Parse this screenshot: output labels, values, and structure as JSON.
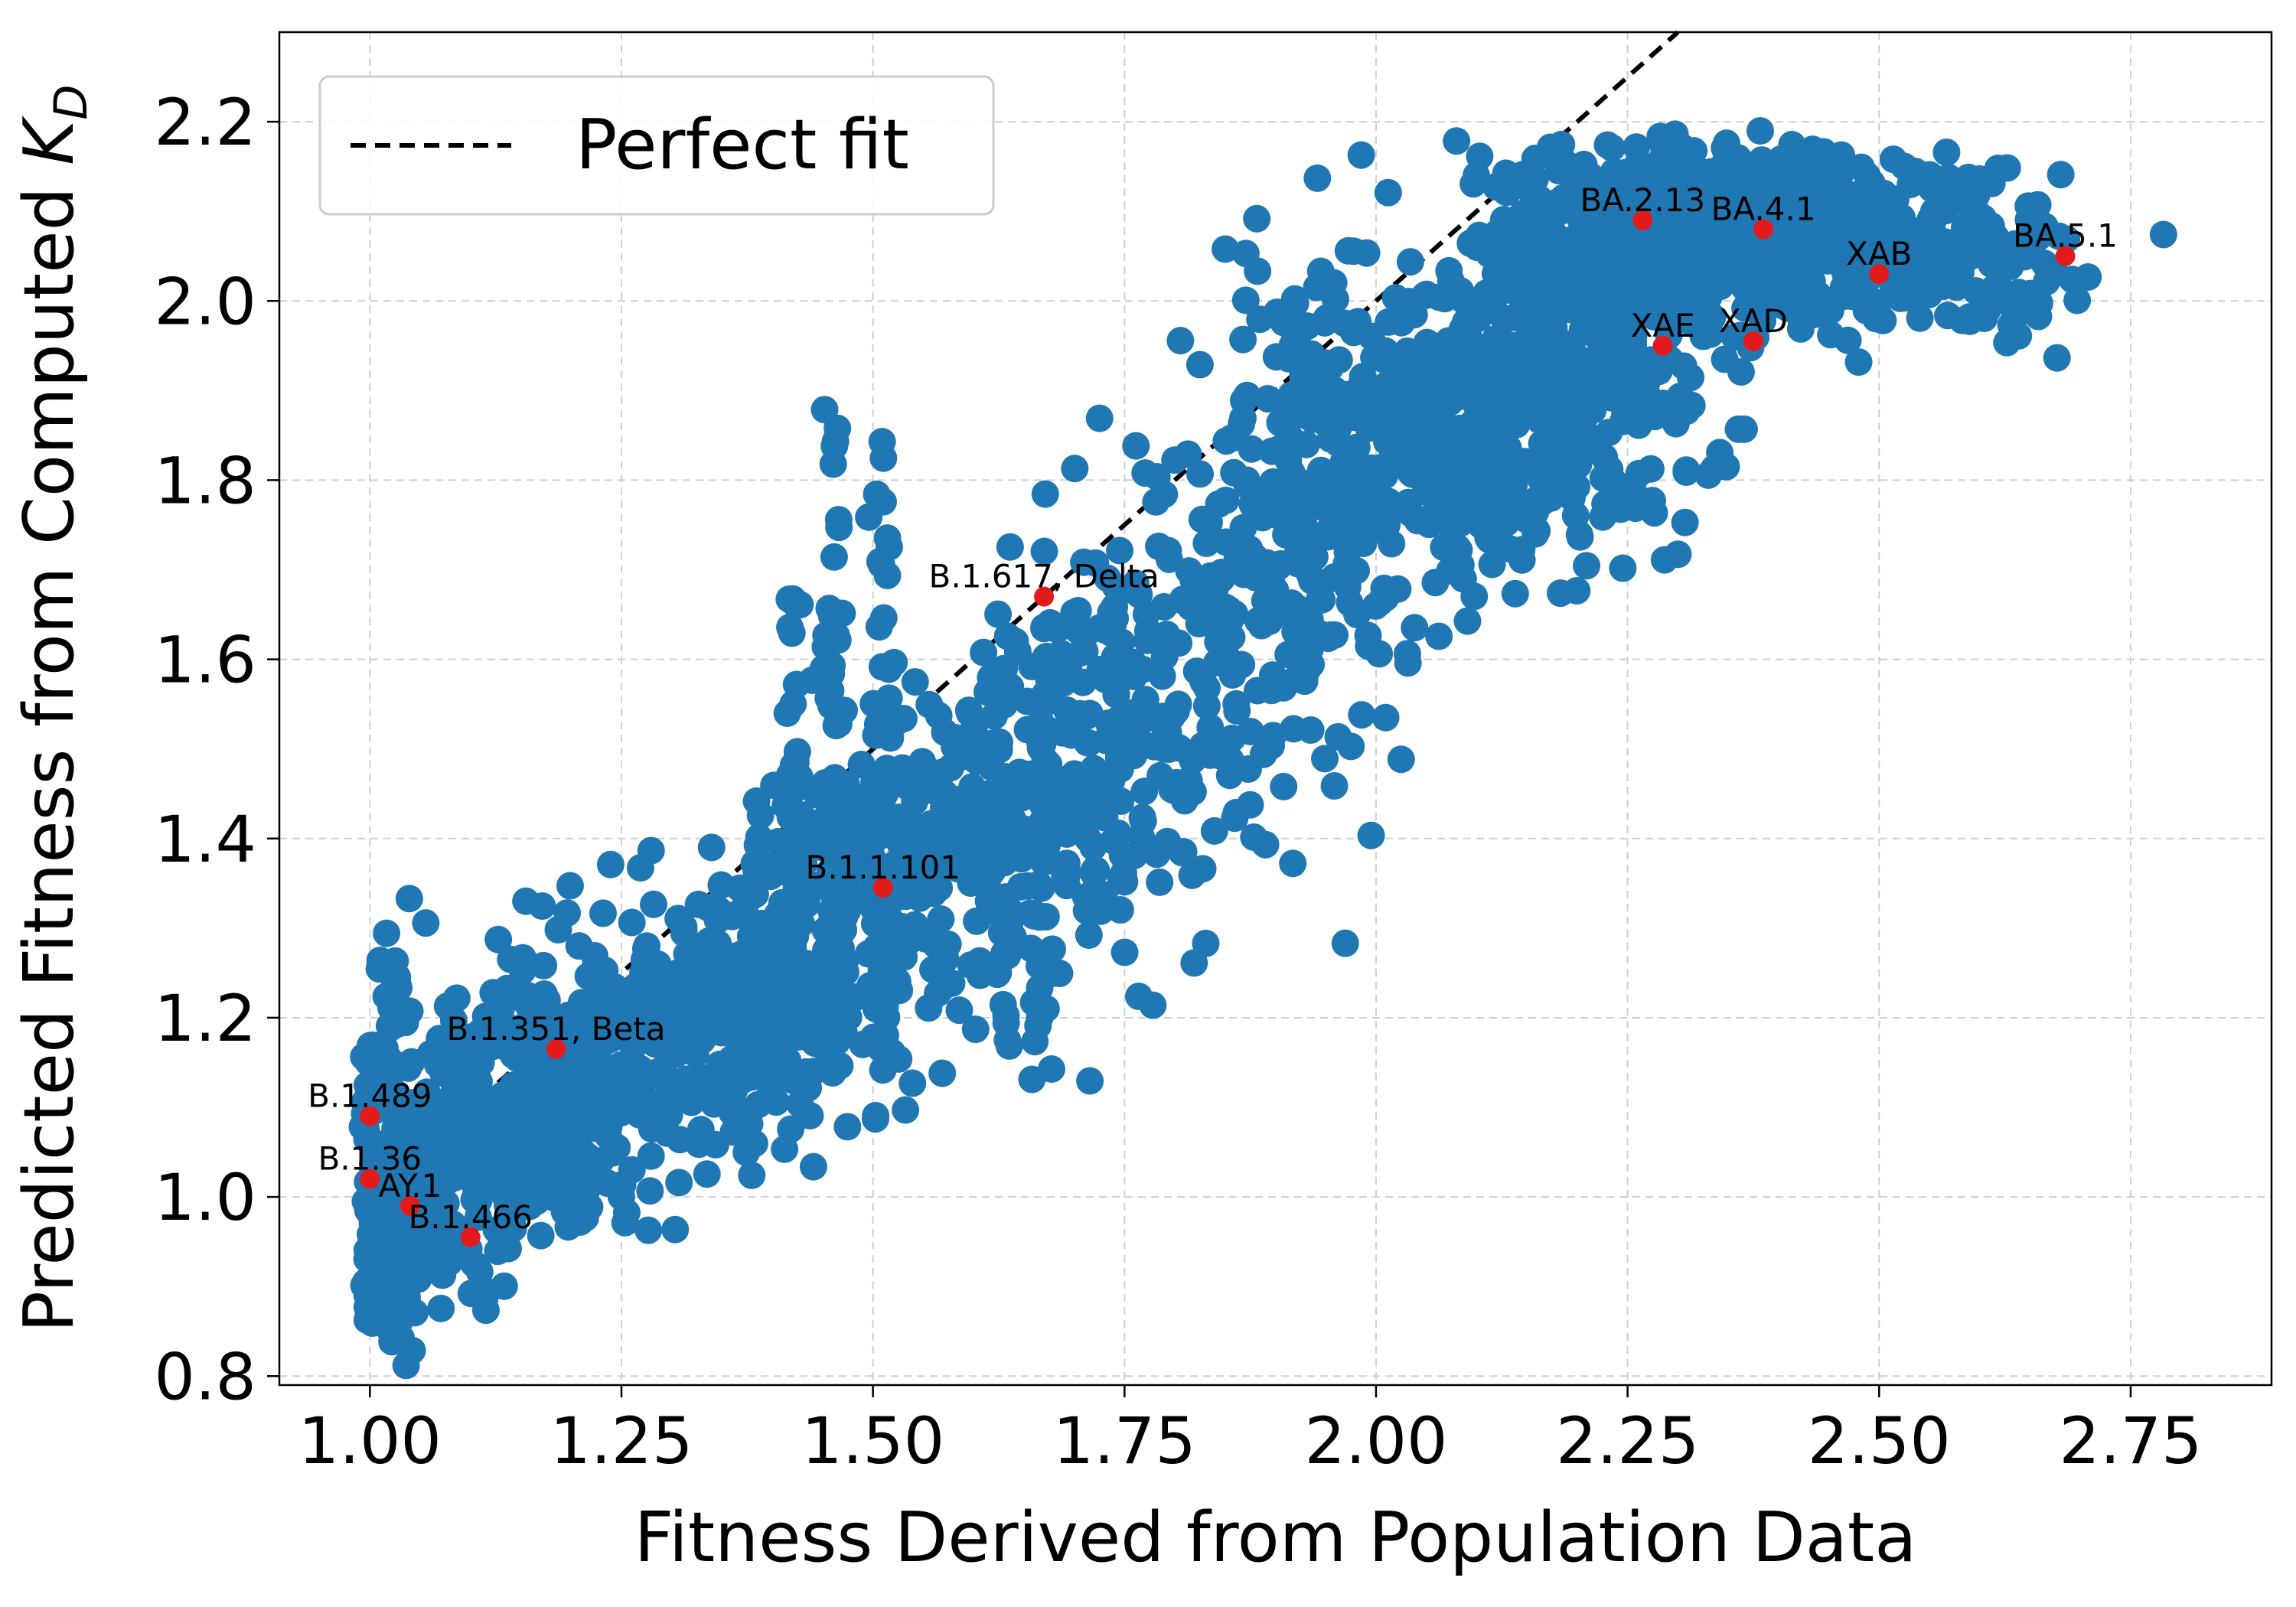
{
  "chart_data": {
    "type": "scatter",
    "xlabel": "Fitness Derived from Population Data",
    "ylabel_main": "Predicted Fitness from Computed ",
    "ylabel_sym": "K",
    "ylabel_sub": "D",
    "xlim": [
      0.91,
      2.89
    ],
    "ylim": [
      0.79,
      2.3
    ],
    "xticks": [
      1.0,
      1.25,
      1.5,
      1.75,
      2.0,
      2.25,
      2.5,
      2.75
    ],
    "xtick_labels": [
      "1.00",
      "1.25",
      "1.50",
      "1.75",
      "2.00",
      "2.25",
      "2.50",
      "2.75"
    ],
    "yticks": [
      0.8,
      1.0,
      1.2,
      1.4,
      1.6,
      1.8,
      2.0,
      2.2
    ],
    "ytick_labels": [
      "0.8",
      "1.0",
      "1.2",
      "1.4",
      "1.6",
      "1.8",
      "2.0",
      "2.2"
    ],
    "grid": true,
    "legend": {
      "position": "top-left",
      "entries": [
        "Perfect fit"
      ]
    },
    "reference_line": {
      "name": "Perfect fit",
      "style": "dashed",
      "color": "#000000",
      "x": [
        1.0,
        2.3
      ],
      "y": [
        1.0,
        2.3
      ]
    },
    "scatter_color": "#1f77b4",
    "highlight_color": "#e31a1c",
    "highlighted": [
      {
        "label": "B.1.489",
        "x": 1.0,
        "y": 1.09
      },
      {
        "label": "B.1.36",
        "x": 1.0,
        "y": 1.02
      },
      {
        "label": "AY.1",
        "x": 1.04,
        "y": 0.99
      },
      {
        "label": "B.1.466",
        "x": 1.1,
        "y": 0.955
      },
      {
        "label": "B.1.351, Beta",
        "x": 1.185,
        "y": 1.165
      },
      {
        "label": "B.1.1.101",
        "x": 1.51,
        "y": 1.345
      },
      {
        "label": "B.1.617, Delta",
        "x": 1.67,
        "y": 1.67
      },
      {
        "label": "BA.2.13",
        "x": 2.265,
        "y": 2.09
      },
      {
        "label": "BA.4.1",
        "x": 2.385,
        "y": 2.08
      },
      {
        "label": "XAB",
        "x": 2.5,
        "y": 2.03
      },
      {
        "label": "BA.5.1",
        "x": 2.685,
        "y": 2.05
      },
      {
        "label": "XAE",
        "x": 2.285,
        "y": 1.95
      },
      {
        "label": "XAD",
        "x": 2.375,
        "y": 1.955
      }
    ],
    "cloud_clusters": [
      {
        "cx": 1.05,
        "cy": 1.02,
        "sx": 0.045,
        "sy": 0.1,
        "n": 200
      },
      {
        "cx": 1.18,
        "cy": 1.1,
        "sx": 0.06,
        "sy": 0.08,
        "n": 240
      },
      {
        "cx": 1.33,
        "cy": 1.2,
        "sx": 0.07,
        "sy": 0.07,
        "n": 220
      },
      {
        "cx": 1.47,
        "cy": 1.3,
        "sx": 0.06,
        "sy": 0.1,
        "n": 230
      },
      {
        "cx": 1.6,
        "cy": 1.42,
        "sx": 0.06,
        "sy": 0.1,
        "n": 200
      },
      {
        "cx": 1.72,
        "cy": 1.5,
        "sx": 0.07,
        "sy": 0.12,
        "n": 180
      },
      {
        "cx": 1.86,
        "cy": 1.62,
        "sx": 0.07,
        "sy": 0.12,
        "n": 160
      },
      {
        "cx": 1.95,
        "cy": 1.85,
        "sx": 0.07,
        "sy": 0.12,
        "n": 150
      },
      {
        "cx": 2.08,
        "cy": 1.85,
        "sx": 0.06,
        "sy": 0.09,
        "n": 260
      },
      {
        "cx": 2.2,
        "cy": 1.93,
        "sx": 0.07,
        "sy": 0.1,
        "n": 320
      },
      {
        "cx": 2.3,
        "cy": 2.08,
        "sx": 0.08,
        "sy": 0.05,
        "n": 380
      },
      {
        "cx": 2.45,
        "cy": 2.07,
        "sx": 0.07,
        "sy": 0.05,
        "n": 280
      },
      {
        "cx": 2.6,
        "cy": 2.05,
        "sx": 0.06,
        "sy": 0.04,
        "n": 110
      }
    ],
    "cloud_columns": [
      {
        "x": 1.0,
        "y0": 0.86,
        "y1": 1.17,
        "n": 45
      },
      {
        "x": 1.025,
        "y0": 0.85,
        "y1": 1.28,
        "n": 40
      },
      {
        "x": 1.46,
        "y0": 1.15,
        "y1": 1.88,
        "n": 60
      },
      {
        "x": 1.42,
        "y0": 1.1,
        "y1": 1.7,
        "n": 30
      },
      {
        "x": 1.51,
        "y0": 1.1,
        "y1": 1.9,
        "n": 40
      },
      {
        "x": 1.67,
        "y0": 1.15,
        "y1": 1.8,
        "n": 25
      }
    ]
  }
}
